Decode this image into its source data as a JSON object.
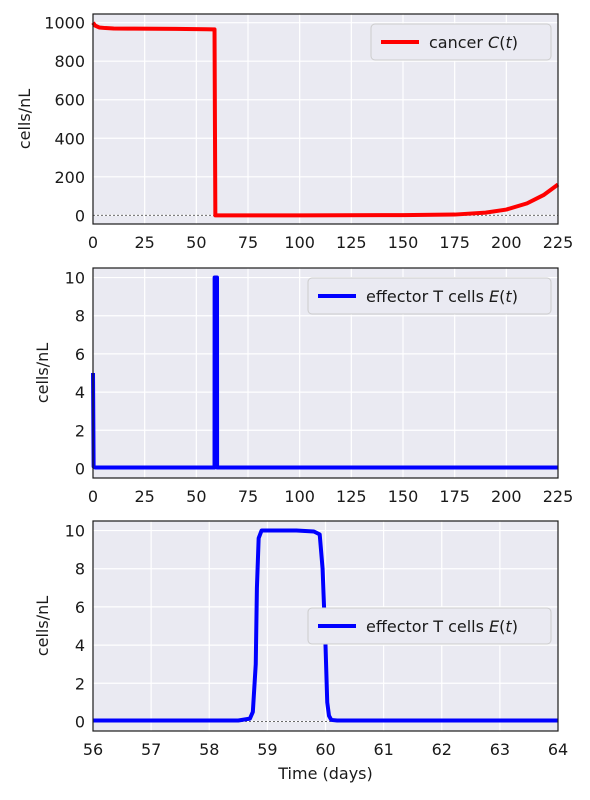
{
  "chart_data": [
    {
      "type": "line",
      "ylabel": "cells/nL",
      "xlabel": "",
      "xlim": [
        0,
        225
      ],
      "ylim": [
        -45,
        1045
      ],
      "xticks": [
        "0",
        "25",
        "50",
        "75",
        "100",
        "125",
        "150",
        "175",
        "200",
        "225"
      ],
      "yticks": [
        "0",
        "200",
        "400",
        "600",
        "800",
        "1000"
      ],
      "grid": true,
      "legend_position": "top-right",
      "series": [
        {
          "name": "cancer C(t)",
          "color": "#ff0000",
          "x": [
            0,
            1,
            3,
            6,
            10,
            20,
            40,
            55,
            58,
            58.8,
            59.2,
            60,
            62,
            100,
            150,
            175,
            190,
            200,
            210,
            218,
            225
          ],
          "y": [
            1000,
            985,
            975,
            972,
            970,
            969,
            968,
            966,
            965,
            965,
            0,
            0,
            0,
            0,
            1,
            4,
            14,
            30,
            62,
            105,
            160
          ]
        }
      ],
      "reference_line_y": 0
    },
    {
      "type": "line",
      "ylabel": "cells/nL",
      "xlabel": "",
      "xlim": [
        0,
        225
      ],
      "ylim": [
        -0.5,
        10.5
      ],
      "xticks": [
        "0",
        "25",
        "50",
        "75",
        "100",
        "125",
        "150",
        "175",
        "200",
        "225"
      ],
      "yticks": [
        "0",
        "2",
        "4",
        "6",
        "8",
        "10"
      ],
      "grid": true,
      "legend_position": "top-right",
      "series": [
        {
          "name": "effector T cells E(t)",
          "color": "#0000ff",
          "x": [
            0,
            0.3,
            1,
            58.8,
            58.85,
            60,
            60.05,
            225
          ],
          "y": [
            5,
            0.1,
            0.05,
            0.05,
            10,
            10,
            0.05,
            0.05
          ]
        }
      ],
      "reference_line_y": 0
    },
    {
      "type": "line",
      "ylabel": "cells/nL",
      "xlabel": "Time (days)",
      "xlim": [
        56,
        64
      ],
      "ylim": [
        -0.5,
        10.5
      ],
      "xticks": [
        "56",
        "57",
        "58",
        "59",
        "60",
        "61",
        "62",
        "63",
        "64"
      ],
      "yticks": [
        "0",
        "2",
        "4",
        "6",
        "8",
        "10"
      ],
      "grid": true,
      "legend_position": "center-right",
      "series": [
        {
          "name": "effector T cells E(t)",
          "color": "#0000ff",
          "x": [
            56,
            58.5,
            58.7,
            58.75,
            58.8,
            58.82,
            58.85,
            58.9,
            59.5,
            59.8,
            59.9,
            59.95,
            60,
            60.03,
            60.06,
            60.1,
            60.2,
            64
          ],
          "y": [
            0.05,
            0.05,
            0.15,
            0.5,
            3,
            7,
            9.6,
            10,
            10,
            9.95,
            9.8,
            8,
            4,
            1,
            0.3,
            0.08,
            0.05,
            0.05
          ]
        }
      ],
      "reference_line_y": 0
    }
  ]
}
